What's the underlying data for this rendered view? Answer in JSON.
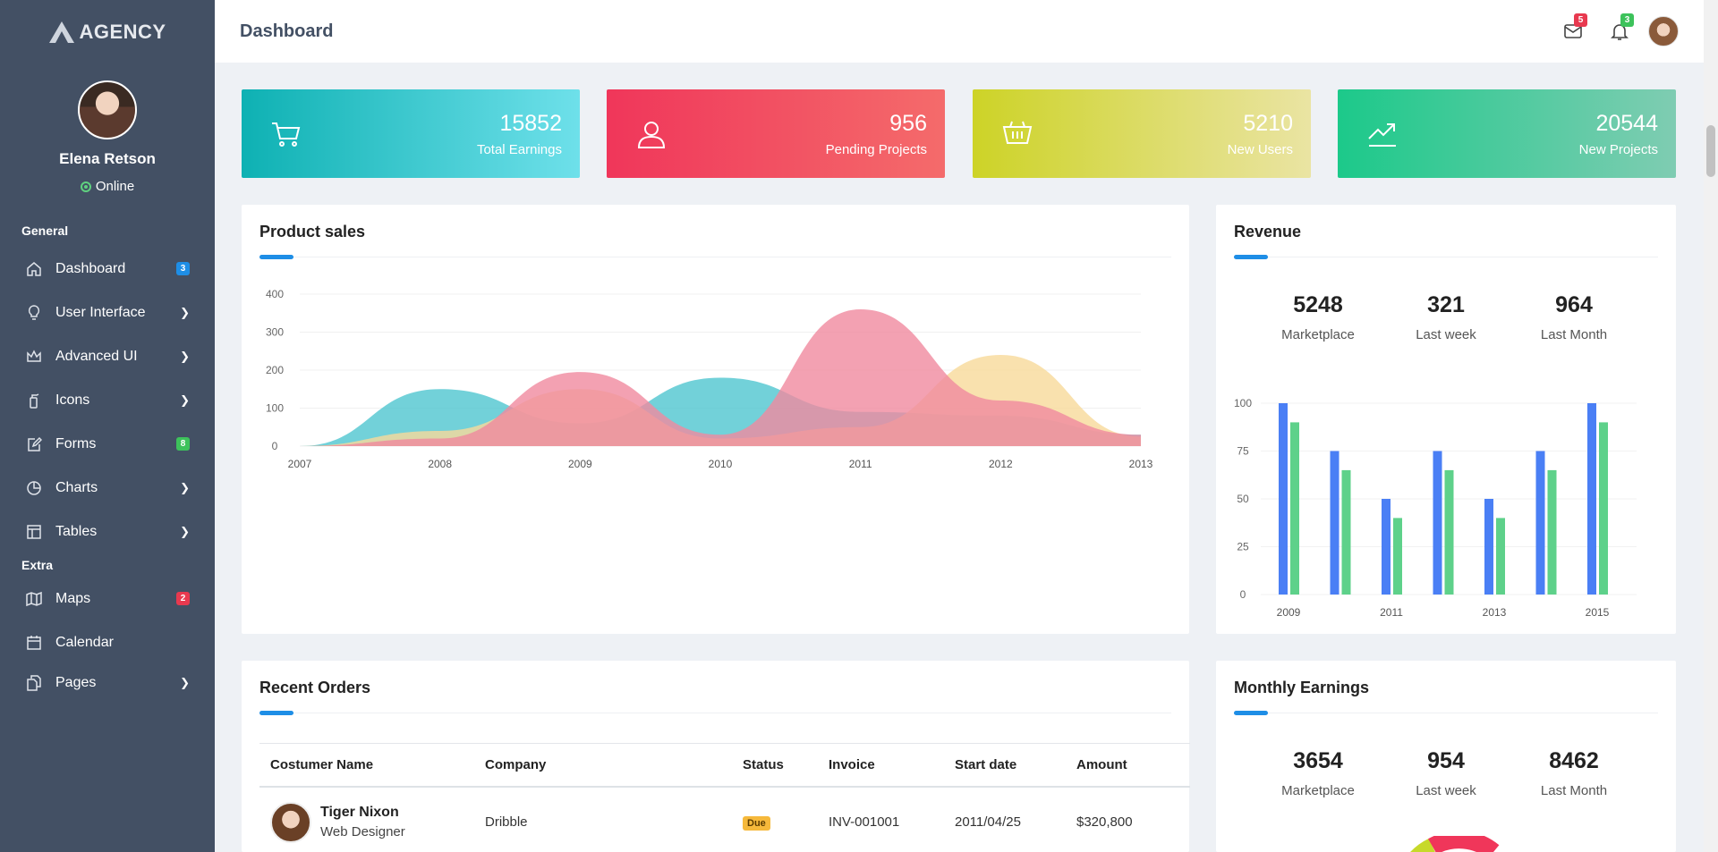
{
  "brand": {
    "name": "AGENCY"
  },
  "profile": {
    "name": "Elena Retson",
    "status": "Online"
  },
  "sidebar": {
    "sections": [
      {
        "title": "General",
        "items": [
          {
            "label": "Dashboard",
            "icon": "home-icon",
            "badge": "3",
            "badge_color": "#1e8ee6"
          },
          {
            "label": "User Interface",
            "icon": "lightbulb-icon",
            "chevron": true
          },
          {
            "label": "Advanced UI",
            "icon": "crown-icon",
            "chevron": true
          },
          {
            "label": "Icons",
            "icon": "extinguisher-icon",
            "chevron": true
          },
          {
            "label": "Forms",
            "icon": "edit-icon",
            "badge": "8",
            "badge_color": "#3dc25b"
          },
          {
            "label": "Charts",
            "icon": "pie-chart-icon",
            "chevron": true
          },
          {
            "label": "Tables",
            "icon": "table-icon",
            "chevron": true
          }
        ]
      },
      {
        "title": "Extra",
        "items": [
          {
            "label": "Maps",
            "icon": "map-icon",
            "badge": "2",
            "badge_color": "#e8394f"
          },
          {
            "label": "Calendar",
            "icon": "calendar-icon"
          },
          {
            "label": "Pages",
            "icon": "pages-icon",
            "chevron": true
          }
        ]
      }
    ]
  },
  "header": {
    "title": "Dashboard",
    "mail_count": "5",
    "mail_badge_color": "#e8394f",
    "notif_count": "3",
    "notif_badge_color": "#3dc25b"
  },
  "stats": [
    {
      "value": "15852",
      "label": "Total Earnings",
      "icon": "cart-icon",
      "gradient": [
        "#0eb1b3",
        "#6ee0ea"
      ]
    },
    {
      "value": "956",
      "label": "Pending Projects",
      "icon": "user-icon",
      "gradient": [
        "#f0365a",
        "#f46b6b"
      ]
    },
    {
      "value": "5210",
      "label": "New Users",
      "icon": "basket-icon",
      "gradient": [
        "#cdd327",
        "#eae4a3"
      ]
    },
    {
      "value": "20544",
      "label": "New Projects",
      "icon": "trending-up-icon",
      "gradient": [
        "#1cc98a",
        "#7fccb2"
      ]
    }
  ],
  "product_sales": {
    "title": "Product sales",
    "chart_data": {
      "type": "area",
      "x": [
        2007,
        2008,
        2009,
        2010,
        2011,
        2012,
        2013
      ],
      "ylim": [
        0,
        400
      ],
      "yticks": [
        0,
        100,
        200,
        300,
        400
      ],
      "series": [
        {
          "color": "#4fc6d0",
          "values": [
            0,
            150,
            60,
            180,
            90,
            80,
            30
          ]
        },
        {
          "color": "#f7d99a",
          "values": [
            0,
            40,
            150,
            20,
            50,
            240,
            25
          ]
        },
        {
          "color": "#f08a9f",
          "values": [
            0,
            20,
            195,
            30,
            360,
            120,
            30
          ]
        }
      ]
    }
  },
  "revenue": {
    "title": "Revenue",
    "metrics": [
      {
        "value": "5248",
        "label": "Marketplace"
      },
      {
        "value": "321",
        "label": "Last week"
      },
      {
        "value": "964",
        "label": "Last Month"
      }
    ],
    "chart_data": {
      "type": "bar",
      "categories": [
        "2009",
        "2010",
        "2011",
        "2012",
        "2013",
        "2014",
        "2015"
      ],
      "tick_labels": [
        "2009",
        "",
        "2011",
        "",
        "2013",
        "",
        "2015"
      ],
      "ylim": [
        0,
        100
      ],
      "yticks": [
        0,
        25,
        50,
        75,
        100
      ],
      "series": [
        {
          "color": "#4a7ff5",
          "values": [
            100,
            75,
            50,
            75,
            50,
            75,
            100
          ]
        },
        {
          "color": "#5ed18a",
          "values": [
            90,
            65,
            40,
            65,
            40,
            65,
            90
          ]
        }
      ]
    }
  },
  "orders": {
    "title": "Recent Orders",
    "columns": [
      "Costumer Name",
      "Company",
      "Status",
      "Invoice",
      "Start date",
      "Amount"
    ],
    "rows": [
      {
        "name": "Tiger Nixon",
        "role": "Web Designer",
        "company": "Dribble",
        "status": "Due",
        "invoice": "INV-001001",
        "start": "2011/04/25",
        "amount": "$320,800"
      }
    ]
  },
  "monthly": {
    "title": "Monthly Earnings",
    "metrics": [
      {
        "value": "3654",
        "label": "Marketplace"
      },
      {
        "value": "954",
        "label": "Last week"
      },
      {
        "value": "8462",
        "label": "Last Month"
      }
    ]
  }
}
